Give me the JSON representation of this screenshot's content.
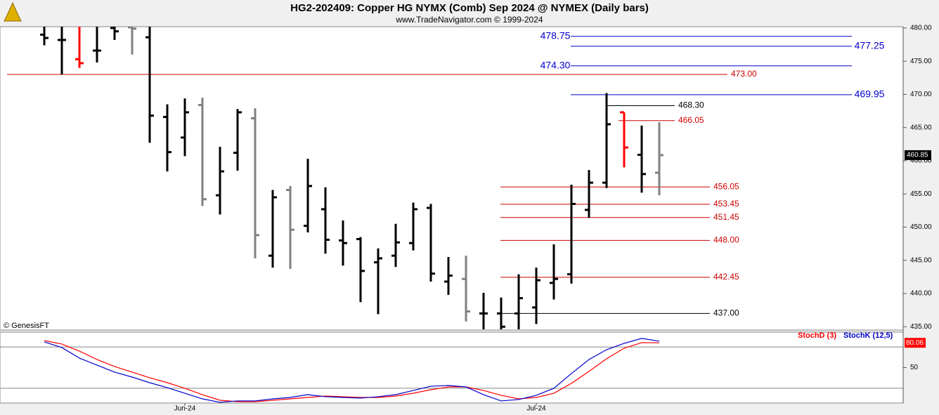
{
  "chart_data": [
    {
      "type": "ohlc",
      "title": "HG2-202409:  Copper HG NYMX (Comb) Sep 2024 @ NYMEX  (Daily bars)",
      "subtitle": "www.TradeNavigator.com © 1999-2024",
      "annotation": "© GenesisFT",
      "open": [
        479.0,
        478.2,
        475.3,
        476.6,
        480.0,
        480.1,
        478.6,
        466.6,
        463.5,
        468.4,
        454.8,
        461.2,
        466.4,
        445.7,
        455.6,
        450.2,
        452.7,
        448.0,
        448.2,
        444.7,
        445.7,
        447.6,
        452.9,
        441.8,
        442.2,
        437.0,
        437.0,
        437.0,
        437.9,
        441.6,
        442.9,
        452.6,
        456.7,
        467.3,
        460.9,
        458.2
      ],
      "high": [
        480.3,
        480.3,
        480.3,
        480.3,
        480.3,
        480.3,
        480.3,
        468.5,
        469.4,
        469.5,
        462.1,
        467.8,
        467.9,
        455.6,
        456.2,
        460.3,
        456.0,
        451.0,
        448.5,
        446.8,
        450.5,
        453.7,
        453.5,
        445.5,
        445.7,
        440.1,
        439.4,
        442.9,
        443.9,
        447.4,
        456.4,
        458.6,
        470.2,
        467.3,
        465.3,
        465.8
      ],
      "low": [
        477.4,
        473.0,
        474.0,
        474.8,
        478.2,
        476.0,
        462.7,
        458.4,
        460.7,
        453.2,
        451.9,
        458.5,
        445.3,
        443.9,
        443.7,
        449.2,
        446.0,
        444.2,
        438.7,
        436.9,
        444.0,
        446.5,
        441.8,
        439.8,
        435.8,
        434.6,
        434.6,
        434.6,
        435.4,
        439.1,
        441.5,
        451.4,
        455.9,
        459.0,
        455.2,
        454.8
      ],
      "close": [
        478.5,
        478.2,
        474.7,
        476.6,
        479.5,
        479.9,
        466.8,
        461.3,
        467.3,
        454.2,
        458.4,
        467.3,
        448.8,
        454.5,
        449.6,
        456.2,
        448.1,
        447.6,
        443.4,
        445.3,
        447.7,
        452.7,
        443.0,
        442.7,
        437.3,
        437.0,
        435.0,
        439.3,
        442.0,
        442.2,
        453.5,
        456.7,
        465.5,
        462.0,
        458.0,
        460.85
      ],
      "colors": [
        "#000000",
        "#000000",
        "#ff0000",
        "#000000",
        "#000000",
        "#808080",
        "#000000",
        "#000000",
        "#000000",
        "#808080",
        "#000000",
        "#000000",
        "#808080",
        "#000000",
        "#808080",
        "#000000",
        "#000000",
        "#000000",
        "#000000",
        "#000000",
        "#000000",
        "#000000",
        "#000000",
        "#000000",
        "#808080",
        "#000000",
        "#000000",
        "#000000",
        "#000000",
        "#000000",
        "#000000",
        "#000000",
        "#000000",
        "#ff0000",
        "#000000",
        "#808080"
      ],
      "ylim": [
        434.5,
        480.2
      ],
      "yticks": [
        {
          "value": 435,
          "label": "435.00"
        },
        {
          "value": 440,
          "label": "440.00"
        },
        {
          "value": 445,
          "label": "445.00"
        },
        {
          "value": 450,
          "label": "450.00"
        },
        {
          "value": 455,
          "label": "455.00"
        },
        {
          "value": 460,
          "label": "460.00"
        },
        {
          "value": 465,
          "label": "465.00"
        },
        {
          "value": 470,
          "label": "470.00"
        },
        {
          "value": 475,
          "label": "475.00"
        },
        {
          "value": 480,
          "label": "480.00"
        }
      ],
      "last": {
        "value": 460.85,
        "label": "460.85"
      },
      "levels": [
        {
          "value": 478.75,
          "label": "478.75",
          "color": "#0000cc"
        },
        {
          "value": 477.25,
          "label": "477.25",
          "color": "#0000cc"
        },
        {
          "value": 474.3,
          "label": "474.30",
          "color": "#0000cc"
        },
        {
          "value": 469.95,
          "label": "469.95",
          "color": "#0000cc"
        },
        {
          "value": 473.0,
          "label": "473.00",
          "color": "#cc0000"
        },
        {
          "value": 468.3,
          "label": "468.30",
          "color": "#000000"
        },
        {
          "value": 466.05,
          "label": "466.05",
          "color": "#cc0000"
        },
        {
          "value": 456.05,
          "label": "456.05",
          "color": "#cc0000"
        },
        {
          "value": 453.45,
          "label": "453.45",
          "color": "#cc0000"
        },
        {
          "value": 451.45,
          "label": "451.45",
          "color": "#cc0000"
        },
        {
          "value": 448.0,
          "label": "448.00",
          "color": "#cc0000"
        },
        {
          "value": 442.45,
          "label": "442.45",
          "color": "#cc0000"
        },
        {
          "value": 437.0,
          "label": "437.00",
          "color": "#000000"
        }
      ]
    },
    {
      "type": "line",
      "categories": [
        null,
        null,
        null,
        null,
        null,
        null,
        null,
        null,
        "Jun-24",
        null,
        null,
        null,
        null,
        null,
        null,
        null,
        null,
        null,
        null,
        null,
        null,
        null,
        null,
        null,
        null,
        null,
        null,
        null,
        "Jul-24",
        null,
        null,
        null,
        null,
        null,
        null,
        null
      ],
      "series": [
        {
          "name": "StochD (3)",
          "color": "#ff0000",
          "values": [
            82.8,
            78.6,
            70.0,
            59.8,
            51.3,
            44.5,
            37.7,
            31.7,
            24.9,
            17.2,
            10.4,
            8.7,
            8.7,
            10.4,
            12.1,
            13.8,
            15.5,
            14.7,
            13.8,
            13.8,
            15.5,
            18.9,
            23.2,
            26.6,
            26.6,
            22.3,
            16.4,
            12.1,
            13.8,
            18.9,
            30.9,
            45.4,
            60.7,
            73.5,
            80.3,
            80.06
          ]
        },
        {
          "name": "StochK (12,5)",
          "color": "#0000cc",
          "values": [
            81.1,
            74.3,
            61.5,
            53.0,
            44.5,
            38.5,
            31.7,
            25.7,
            18.9,
            12.1,
            7.9,
            9.6,
            9.6,
            12.1,
            13.8,
            17.2,
            14.7,
            13.8,
            13.0,
            14.7,
            17.2,
            22.3,
            27.4,
            28.3,
            26.6,
            17.2,
            9.6,
            11.3,
            16.4,
            24.9,
            42.8,
            59.8,
            71.7,
            79.4,
            85.4,
            82.0
          ]
        }
      ],
      "ylim": [
        7,
        93
      ],
      "yticks": [
        50
      ],
      "reference_lines": [
        25,
        75
      ],
      "marker": {
        "value": 80.06,
        "label": "80.06",
        "color": "#ff0000"
      }
    }
  ]
}
